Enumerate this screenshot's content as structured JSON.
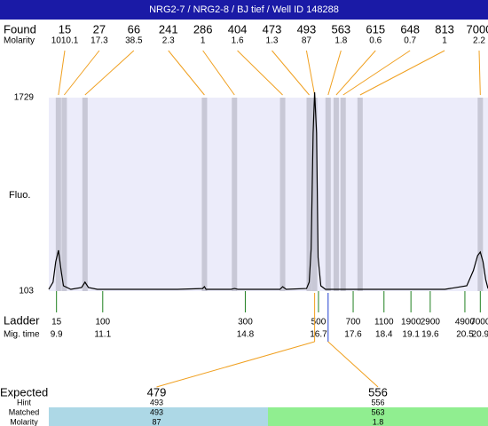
{
  "title": "NRG2-7 / NRG2-8 / BJ tief / Well ID 148288",
  "found": {
    "label": "Found",
    "molarity_label": "Molarity",
    "peaks": [
      {
        "size": 15,
        "molarity": 1010.1,
        "time": 9.95
      },
      {
        "size": 27,
        "molarity": 17.3,
        "time": 10.1
      },
      {
        "size": 66,
        "molarity": 38.5,
        "time": 10.64
      },
      {
        "size": 241,
        "molarity": 2.3,
        "time": 13.74
      },
      {
        "size": 286,
        "molarity": 1,
        "time": 14.52
      },
      {
        "size": 404,
        "molarity": 1.6,
        "time": 15.77
      },
      {
        "size": 473,
        "molarity": 1.3,
        "time": 16.46
      },
      {
        "size": 493,
        "molarity": 87,
        "time": 16.6
      },
      {
        "size": 563,
        "molarity": 1.8,
        "time": 16.95
      },
      {
        "size": 615,
        "molarity": 0.6,
        "time": 17.16
      },
      {
        "size": 648,
        "molarity": 0.7,
        "time": 17.34
      },
      {
        "size": 813,
        "molarity": 1,
        "time": 17.78
      },
      {
        "size": 7000,
        "molarity": 2.2,
        "time": 20.9
      }
    ]
  },
  "plot": {
    "y_label": "Fluo.",
    "ylim": [
      103,
      1729
    ],
    "yticks": [
      1729,
      103
    ],
    "xlim": [
      9.7,
      21.1
    ],
    "trace": {
      "time": [
        9.7,
        9.81,
        9.88,
        9.95,
        10.02,
        10.08,
        10.27,
        10.55,
        10.64,
        10.73,
        10.96,
        13.04,
        13.69,
        13.74,
        13.78,
        14.43,
        14.52,
        14.61,
        15.7,
        15.77,
        15.86,
        16.39,
        16.46,
        16.51,
        16.56,
        16.6,
        16.65,
        16.69,
        16.76,
        16.88,
        17.2,
        19.98,
        20.55,
        20.72,
        20.83,
        20.9,
        20.97,
        21.04,
        21.1
      ],
      "fluo": [
        118,
        178,
        349,
        446,
        275,
        148,
        118,
        133,
        178,
        133,
        118,
        118,
        125,
        140,
        118,
        118,
        125,
        118,
        118,
        140,
        118,
        125,
        178,
        461,
        1431,
        1774,
        1431,
        386,
        148,
        118,
        118,
        118,
        148,
        275,
        401,
        431,
        349,
        200,
        125
      ]
    }
  },
  "ladder": {
    "label": "Ladder",
    "time_label": "Mig. time",
    "sizes": [
      15,
      100,
      300,
      500,
      700,
      1100,
      1900,
      2900,
      4900,
      7000
    ],
    "times": [
      9.9,
      11.1,
      14.8,
      16.7,
      17.6,
      18.4,
      19.1,
      19.6,
      20.5,
      20.9
    ]
  },
  "expected": {
    "label": "Expected",
    "hint_label": "Hint",
    "matched_label": "Matched",
    "molarity_label": "Molarity",
    "peaks": [
      {
        "expected": 479,
        "hint": 493,
        "matched": 493,
        "molarity": 87
      },
      {
        "expected": 556,
        "hint": 556,
        "matched": 563,
        "molarity": 1.8
      }
    ]
  }
}
